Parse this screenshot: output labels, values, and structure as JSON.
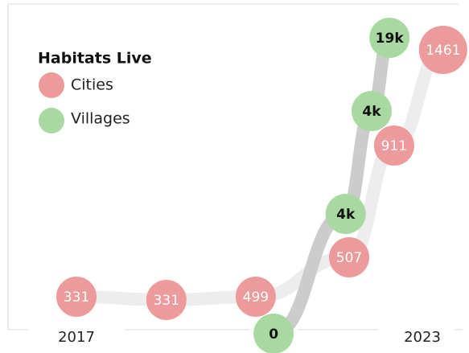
{
  "chart_data": {
    "type": "bubble-line",
    "legend_title": "Habitats Live",
    "xlim": [
      2016.0,
      2024.0
    ],
    "ylim": [
      0,
      100
    ],
    "xticks": [
      2017,
      2023
    ],
    "series": [
      {
        "name": "Cities",
        "color": "#ec9a9c",
        "line_color": "#ededed",
        "x": [
          2017.0,
          2018.56,
          2020.11,
          2021.73,
          2022.51,
          2023.36
        ],
        "y": [
          15.25,
          14.25,
          15.25,
          27.5,
          62.25,
          92
        ],
        "values": [
          331,
          331,
          499,
          507,
          911,
          1461
        ],
        "value_labels": [
          "331",
          "331",
          "499",
          "507",
          "911",
          "1461"
        ]
      },
      {
        "name": "Villages",
        "color": "#aad8a3",
        "line_color": "#cccccc",
        "x": [
          2020.42,
          2021.67,
          2022.12,
          2022.43
        ],
        "y": [
          3.75,
          41,
          73,
          95.75
        ],
        "values": [
          0,
          4000,
          4000,
          19000
        ],
        "value_labels": [
          "0",
          "4k",
          "4k",
          "19k"
        ]
      }
    ]
  }
}
